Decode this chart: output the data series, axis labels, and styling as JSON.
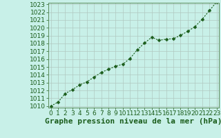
{
  "x": [
    0,
    1,
    2,
    3,
    4,
    5,
    6,
    7,
    8,
    9,
    10,
    11,
    12,
    13,
    14,
    15,
    16,
    17,
    18,
    19,
    20,
    21,
    22,
    23
  ],
  "y": [
    1010.0,
    1010.5,
    1011.6,
    1012.1,
    1012.7,
    1013.1,
    1013.7,
    1014.3,
    1014.7,
    1015.1,
    1015.35,
    1016.1,
    1017.2,
    1018.05,
    1018.8,
    1018.4,
    1018.55,
    1018.6,
    1019.05,
    1019.55,
    1020.15,
    1021.1,
    1022.2,
    1023.3
  ],
  "ylim_min": 1010,
  "ylim_max": 1023,
  "xlim_min": 0,
  "xlim_max": 23,
  "yticks": [
    1010,
    1011,
    1012,
    1013,
    1014,
    1015,
    1016,
    1017,
    1018,
    1019,
    1020,
    1021,
    1022,
    1023
  ],
  "xticks": [
    0,
    1,
    2,
    3,
    4,
    5,
    6,
    7,
    8,
    9,
    10,
    11,
    12,
    13,
    14,
    15,
    16,
    17,
    18,
    19,
    20,
    21,
    22,
    23
  ],
  "line_color": "#1a5c1a",
  "marker": "D",
  "marker_size": 2.5,
  "bg_color": "#c8f0e8",
  "grid_color": "#b0c8c0",
  "xlabel": "Graphe pression niveau de la mer (hPa)",
  "xlabel_color": "#1a5c1a",
  "tick_color": "#1a5c1a",
  "tick_fontsize": 6.5,
  "xlabel_fontsize": 8,
  "border_color": "#5a8a5a",
  "line_width": 0.8
}
